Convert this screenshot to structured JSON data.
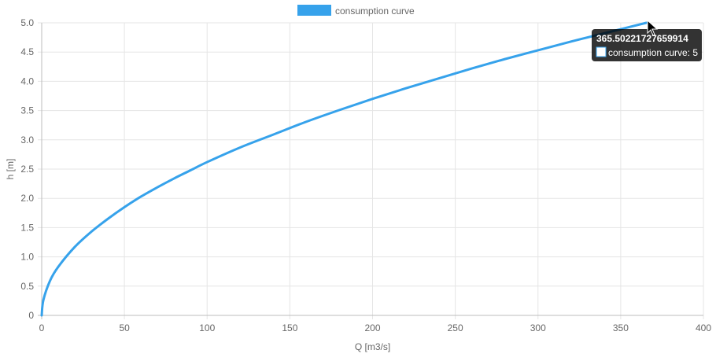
{
  "chart_data": {
    "type": "line",
    "xlabel": "Q [m3/s]",
    "ylabel": "h [m]",
    "xlim": [
      0,
      400
    ],
    "ylim": [
      0,
      5
    ],
    "x_ticks": [
      "0",
      "50",
      "100",
      "150",
      "200",
      "250",
      "300",
      "350",
      "400"
    ],
    "y_ticks": [
      "0",
      "0.5",
      "1.0",
      "1.5",
      "2.0",
      "2.5",
      "3.0",
      "3.5",
      "4.0",
      "4.5",
      "5.0"
    ],
    "grid": true,
    "legend_position": "top",
    "series": [
      {
        "name": "consumption curve",
        "color": "#36a2eb",
        "x": [
          0,
          1,
          5,
          10,
          20,
          30,
          40,
          50,
          60,
          70,
          80,
          90,
          100,
          120,
          140,
          160,
          180,
          200,
          220,
          240,
          260,
          280,
          300,
          320,
          340,
          365.5
        ],
        "y": [
          0,
          0.26,
          0.59,
          0.83,
          1.17,
          1.43,
          1.65,
          1.85,
          2.03,
          2.19,
          2.34,
          2.48,
          2.62,
          2.87,
          3.09,
          3.31,
          3.51,
          3.7,
          3.88,
          4.05,
          4.22,
          4.38,
          4.53,
          4.68,
          4.82,
          5.0
        ]
      }
    ],
    "tooltip": {
      "title": "365.50221727659914",
      "label": "consumption curve: 5",
      "x": 365.50221727659914,
      "y": 5
    }
  }
}
